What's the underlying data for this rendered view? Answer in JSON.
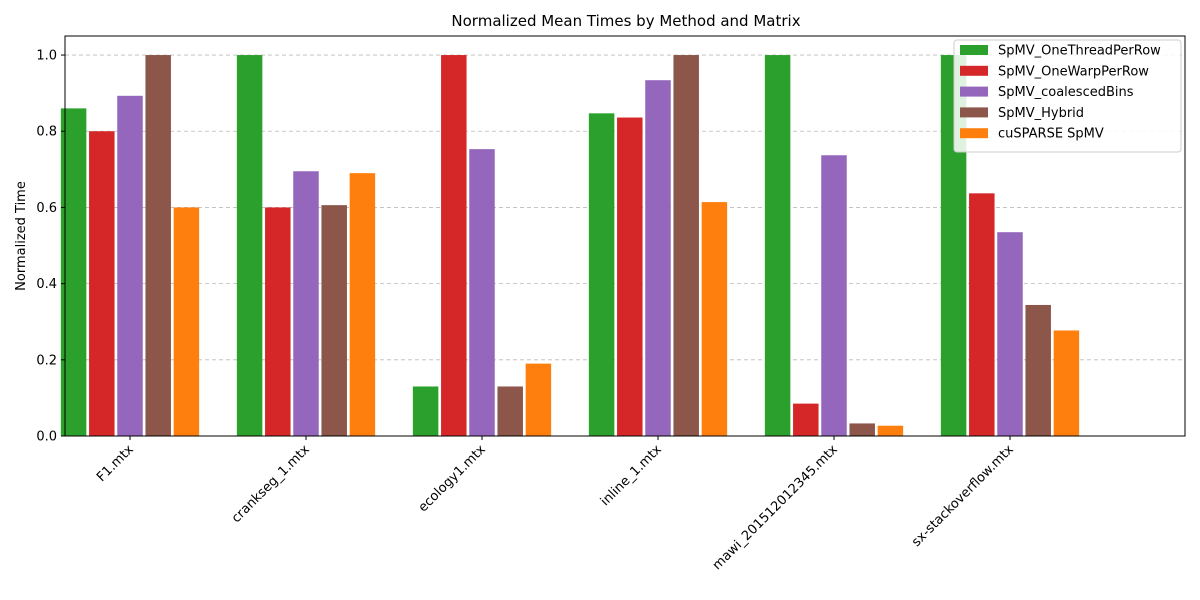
{
  "chart_data": {
    "type": "bar",
    "title": "Normalized Mean Times by Method and Matrix",
    "xlabel": "",
    "ylabel": "Normalized Time",
    "ylim": [
      0,
      1.05
    ],
    "yticks": [
      "0.0",
      "0.2",
      "0.4",
      "0.6",
      "0.8",
      "1.0"
    ],
    "grid": "y-dashed",
    "legend_position": "top-right",
    "categories": [
      "F1.mtx",
      "crankseg_1.mtx",
      "ecology1.mtx",
      "inline_1.mtx",
      "mawi_201512012345.mtx",
      "sx-stackoverflow.mtx"
    ],
    "series": [
      {
        "name": "SpMV_OneThreadPerRow",
        "color": "#2ca02c",
        "values": [
          0.86,
          1.0,
          0.13,
          0.847,
          1.0,
          1.0
        ]
      },
      {
        "name": "SpMV_OneWarpPerRow",
        "color": "#d62728",
        "values": [
          0.8,
          0.6,
          1.0,
          0.836,
          0.085,
          0.637
        ]
      },
      {
        "name": "SpMV_coalescedBins",
        "color": "#9467bd",
        "values": [
          0.893,
          0.695,
          0.753,
          0.934,
          0.737,
          0.535
        ]
      },
      {
        "name": "SpMV_Hybrid",
        "color": "#8c564b",
        "values": [
          1.0,
          0.606,
          0.13,
          1.0,
          0.033,
          0.344
        ]
      },
      {
        "name": "cuSPARSE SpMV",
        "color": "#ff7f0e",
        "values": [
          0.6,
          0.69,
          0.19,
          0.614,
          0.027,
          0.277
        ]
      }
    ]
  }
}
